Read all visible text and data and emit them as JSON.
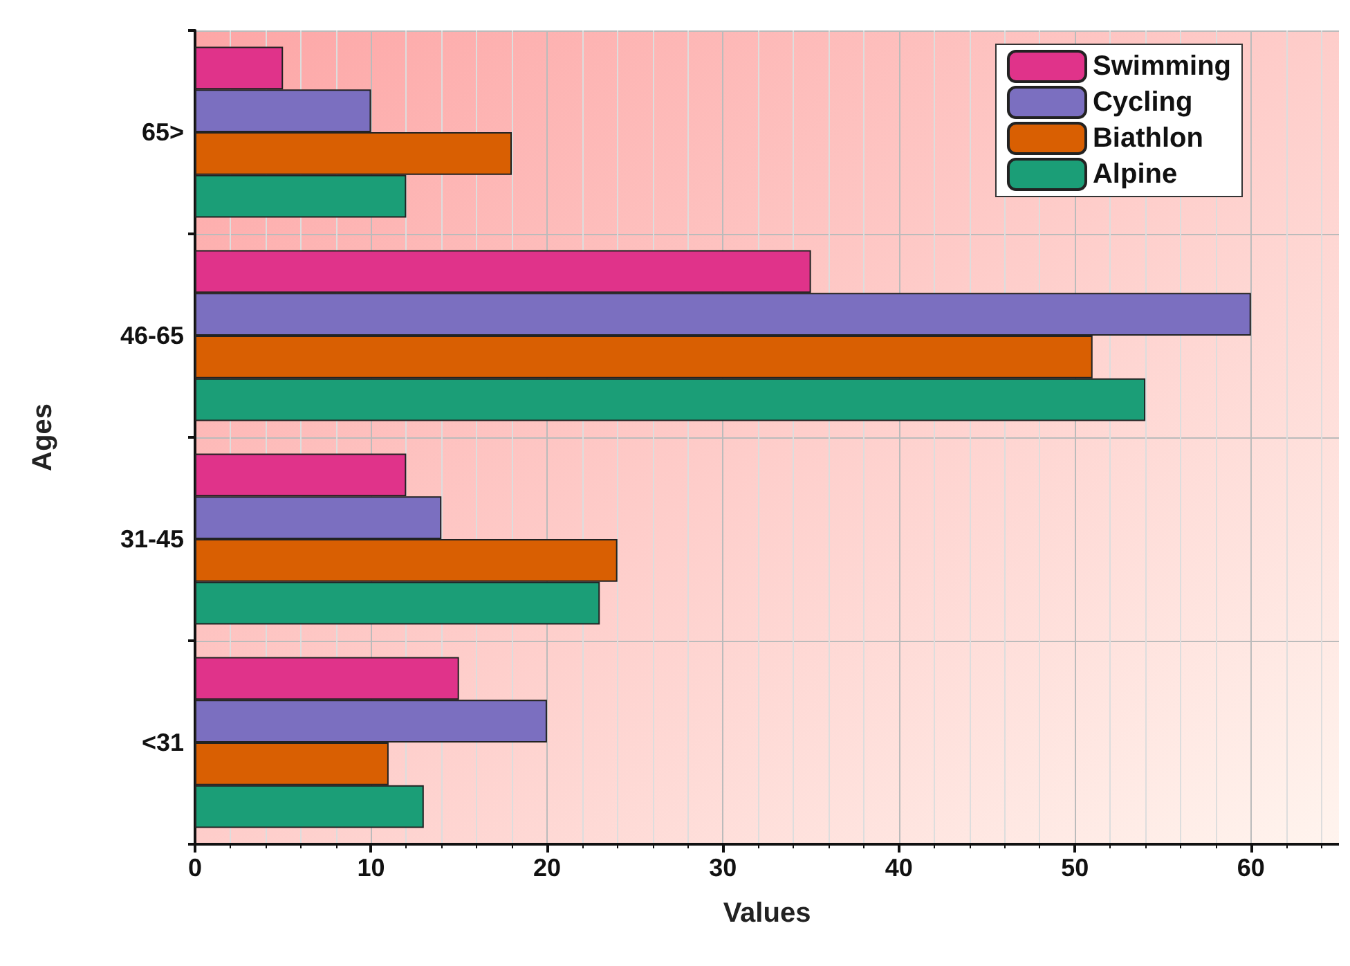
{
  "chart_data": {
    "type": "bar",
    "orientation": "horizontal",
    "xlabel": "Values",
    "ylabel": "Ages",
    "categories": [
      "65>",
      "46-65",
      "31-45",
      "<31"
    ],
    "series": [
      {
        "name": "Swimming",
        "color": "#e0338a",
        "values": [
          5,
          35,
          12,
          15
        ]
      },
      {
        "name": "Cycling",
        "color": "#7b6fc0",
        "values": [
          10,
          60,
          14,
          20
        ]
      },
      {
        "name": "Biathlon",
        "color": "#d95f02",
        "values": [
          18,
          51,
          24,
          11
        ]
      },
      {
        "name": "Alpine",
        "color": "#1b9e77",
        "values": [
          12,
          54,
          23,
          13
        ]
      }
    ],
    "xlim": [
      0,
      65
    ],
    "xticks": [
      0,
      10,
      20,
      30,
      40,
      50,
      60
    ],
    "grid": true,
    "legend": "top right"
  }
}
